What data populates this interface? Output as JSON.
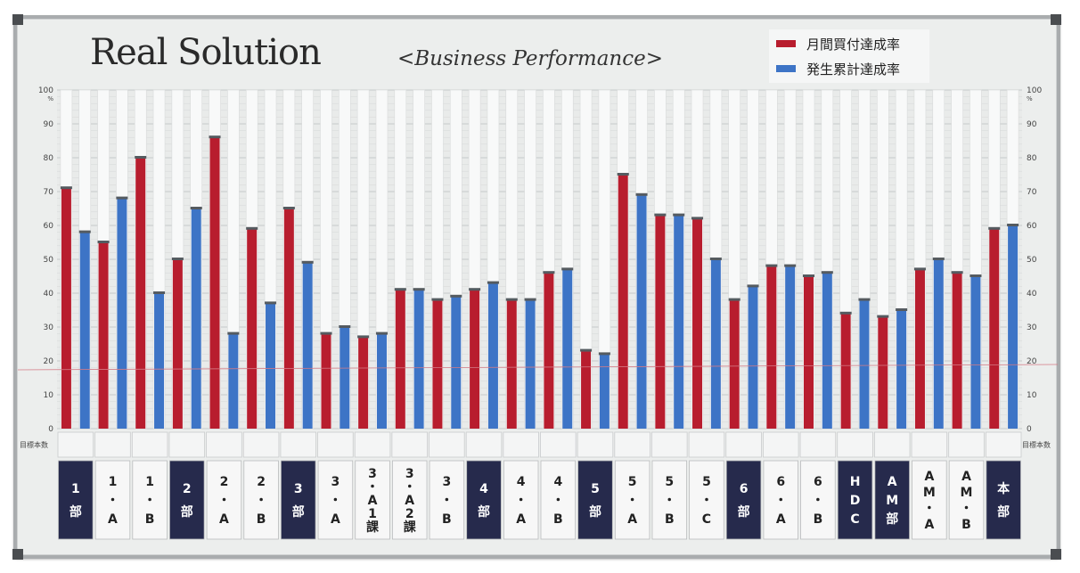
{
  "title": "Real Solution",
  "subtitle": "<Business Performance>",
  "legend": [
    {
      "label": "月間買付達成率",
      "color": "#b81d2e"
    },
    {
      "label": "発生累計達成率",
      "color": "#3d74c6"
    }
  ],
  "row_label_left": "目標本数",
  "row_label_right": "目標本数",
  "chart_data": {
    "type": "bar",
    "title": "<Business Performance>",
    "ylim": [
      0,
      100
    ],
    "yunit": "%",
    "yticks": [
      0,
      10,
      20,
      30,
      40,
      50,
      60,
      70,
      80,
      90,
      100
    ],
    "grid": true,
    "legend_position": "top-right",
    "categories": [
      {
        "label": "1部",
        "chars": [
          "1",
          "部"
        ],
        "dept": true
      },
      {
        "label": "1・A",
        "chars": [
          "1",
          "・",
          "A"
        ],
        "dept": false
      },
      {
        "label": "1・B",
        "chars": [
          "1",
          "・",
          "B"
        ],
        "dept": false
      },
      {
        "label": "2部",
        "chars": [
          "2",
          "部"
        ],
        "dept": true
      },
      {
        "label": "2・A",
        "chars": [
          "2",
          "・",
          "A"
        ],
        "dept": false
      },
      {
        "label": "2・B",
        "chars": [
          "2",
          "・",
          "B"
        ],
        "dept": false
      },
      {
        "label": "3部",
        "chars": [
          "3",
          "部"
        ],
        "dept": true
      },
      {
        "label": "3・A",
        "chars": [
          "3",
          "・",
          "A"
        ],
        "dept": false
      },
      {
        "label": "3・A1課",
        "chars": [
          "3",
          "・",
          "A",
          "1",
          "課"
        ],
        "dept": false
      },
      {
        "label": "3・A2課",
        "chars": [
          "3",
          "・",
          "A",
          "2",
          "課"
        ],
        "dept": false
      },
      {
        "label": "3・B",
        "chars": [
          "3",
          "・",
          "B"
        ],
        "dept": false
      },
      {
        "label": "4部",
        "chars": [
          "4",
          "部"
        ],
        "dept": true
      },
      {
        "label": "4・A",
        "chars": [
          "4",
          "・",
          "A"
        ],
        "dept": false
      },
      {
        "label": "4・B",
        "chars": [
          "4",
          "・",
          "B"
        ],
        "dept": false
      },
      {
        "label": "5部",
        "chars": [
          "5",
          "部"
        ],
        "dept": true
      },
      {
        "label": "5・A",
        "chars": [
          "5",
          "・",
          "A"
        ],
        "dept": false
      },
      {
        "label": "5・B",
        "chars": [
          "5",
          "・",
          "B"
        ],
        "dept": false
      },
      {
        "label": "5・C",
        "chars": [
          "5",
          "・",
          "C"
        ],
        "dept": false
      },
      {
        "label": "6部",
        "chars": [
          "6",
          "部"
        ],
        "dept": true
      },
      {
        "label": "6・A",
        "chars": [
          "6",
          "・",
          "A"
        ],
        "dept": false
      },
      {
        "label": "6・B",
        "chars": [
          "6",
          "・",
          "B"
        ],
        "dept": false
      },
      {
        "label": "HDC",
        "chars": [
          "H",
          "D",
          "C"
        ],
        "dept": true
      },
      {
        "label": "AM部",
        "chars": [
          "A",
          "M",
          "部"
        ],
        "dept": true
      },
      {
        "label": "AM・A",
        "chars": [
          "A",
          "M",
          "・",
          "A"
        ],
        "dept": false
      },
      {
        "label": "AM・B",
        "chars": [
          "A",
          "M",
          "・",
          "B"
        ],
        "dept": false
      },
      {
        "label": "本部",
        "chars": [
          "本",
          "部"
        ],
        "dept": true
      }
    ],
    "series": [
      {
        "name": "月間買付達成率",
        "color": "#b81d2e",
        "values": [
          71,
          55,
          80,
          50,
          86,
          59,
          65,
          28,
          27,
          41,
          38,
          41,
          38,
          46,
          23,
          75,
          63,
          62,
          38,
          48,
          45,
          34,
          33,
          47,
          46,
          59
        ]
      },
      {
        "name": "発生累計達成率",
        "color": "#3d74c6",
        "values": [
          58,
          68,
          40,
          65,
          28,
          37,
          49,
          30,
          28,
          41,
          39,
          43,
          38,
          47,
          22,
          69,
          63,
          50,
          42,
          48,
          46,
          38,
          35,
          50,
          45,
          60
        ]
      }
    ]
  }
}
